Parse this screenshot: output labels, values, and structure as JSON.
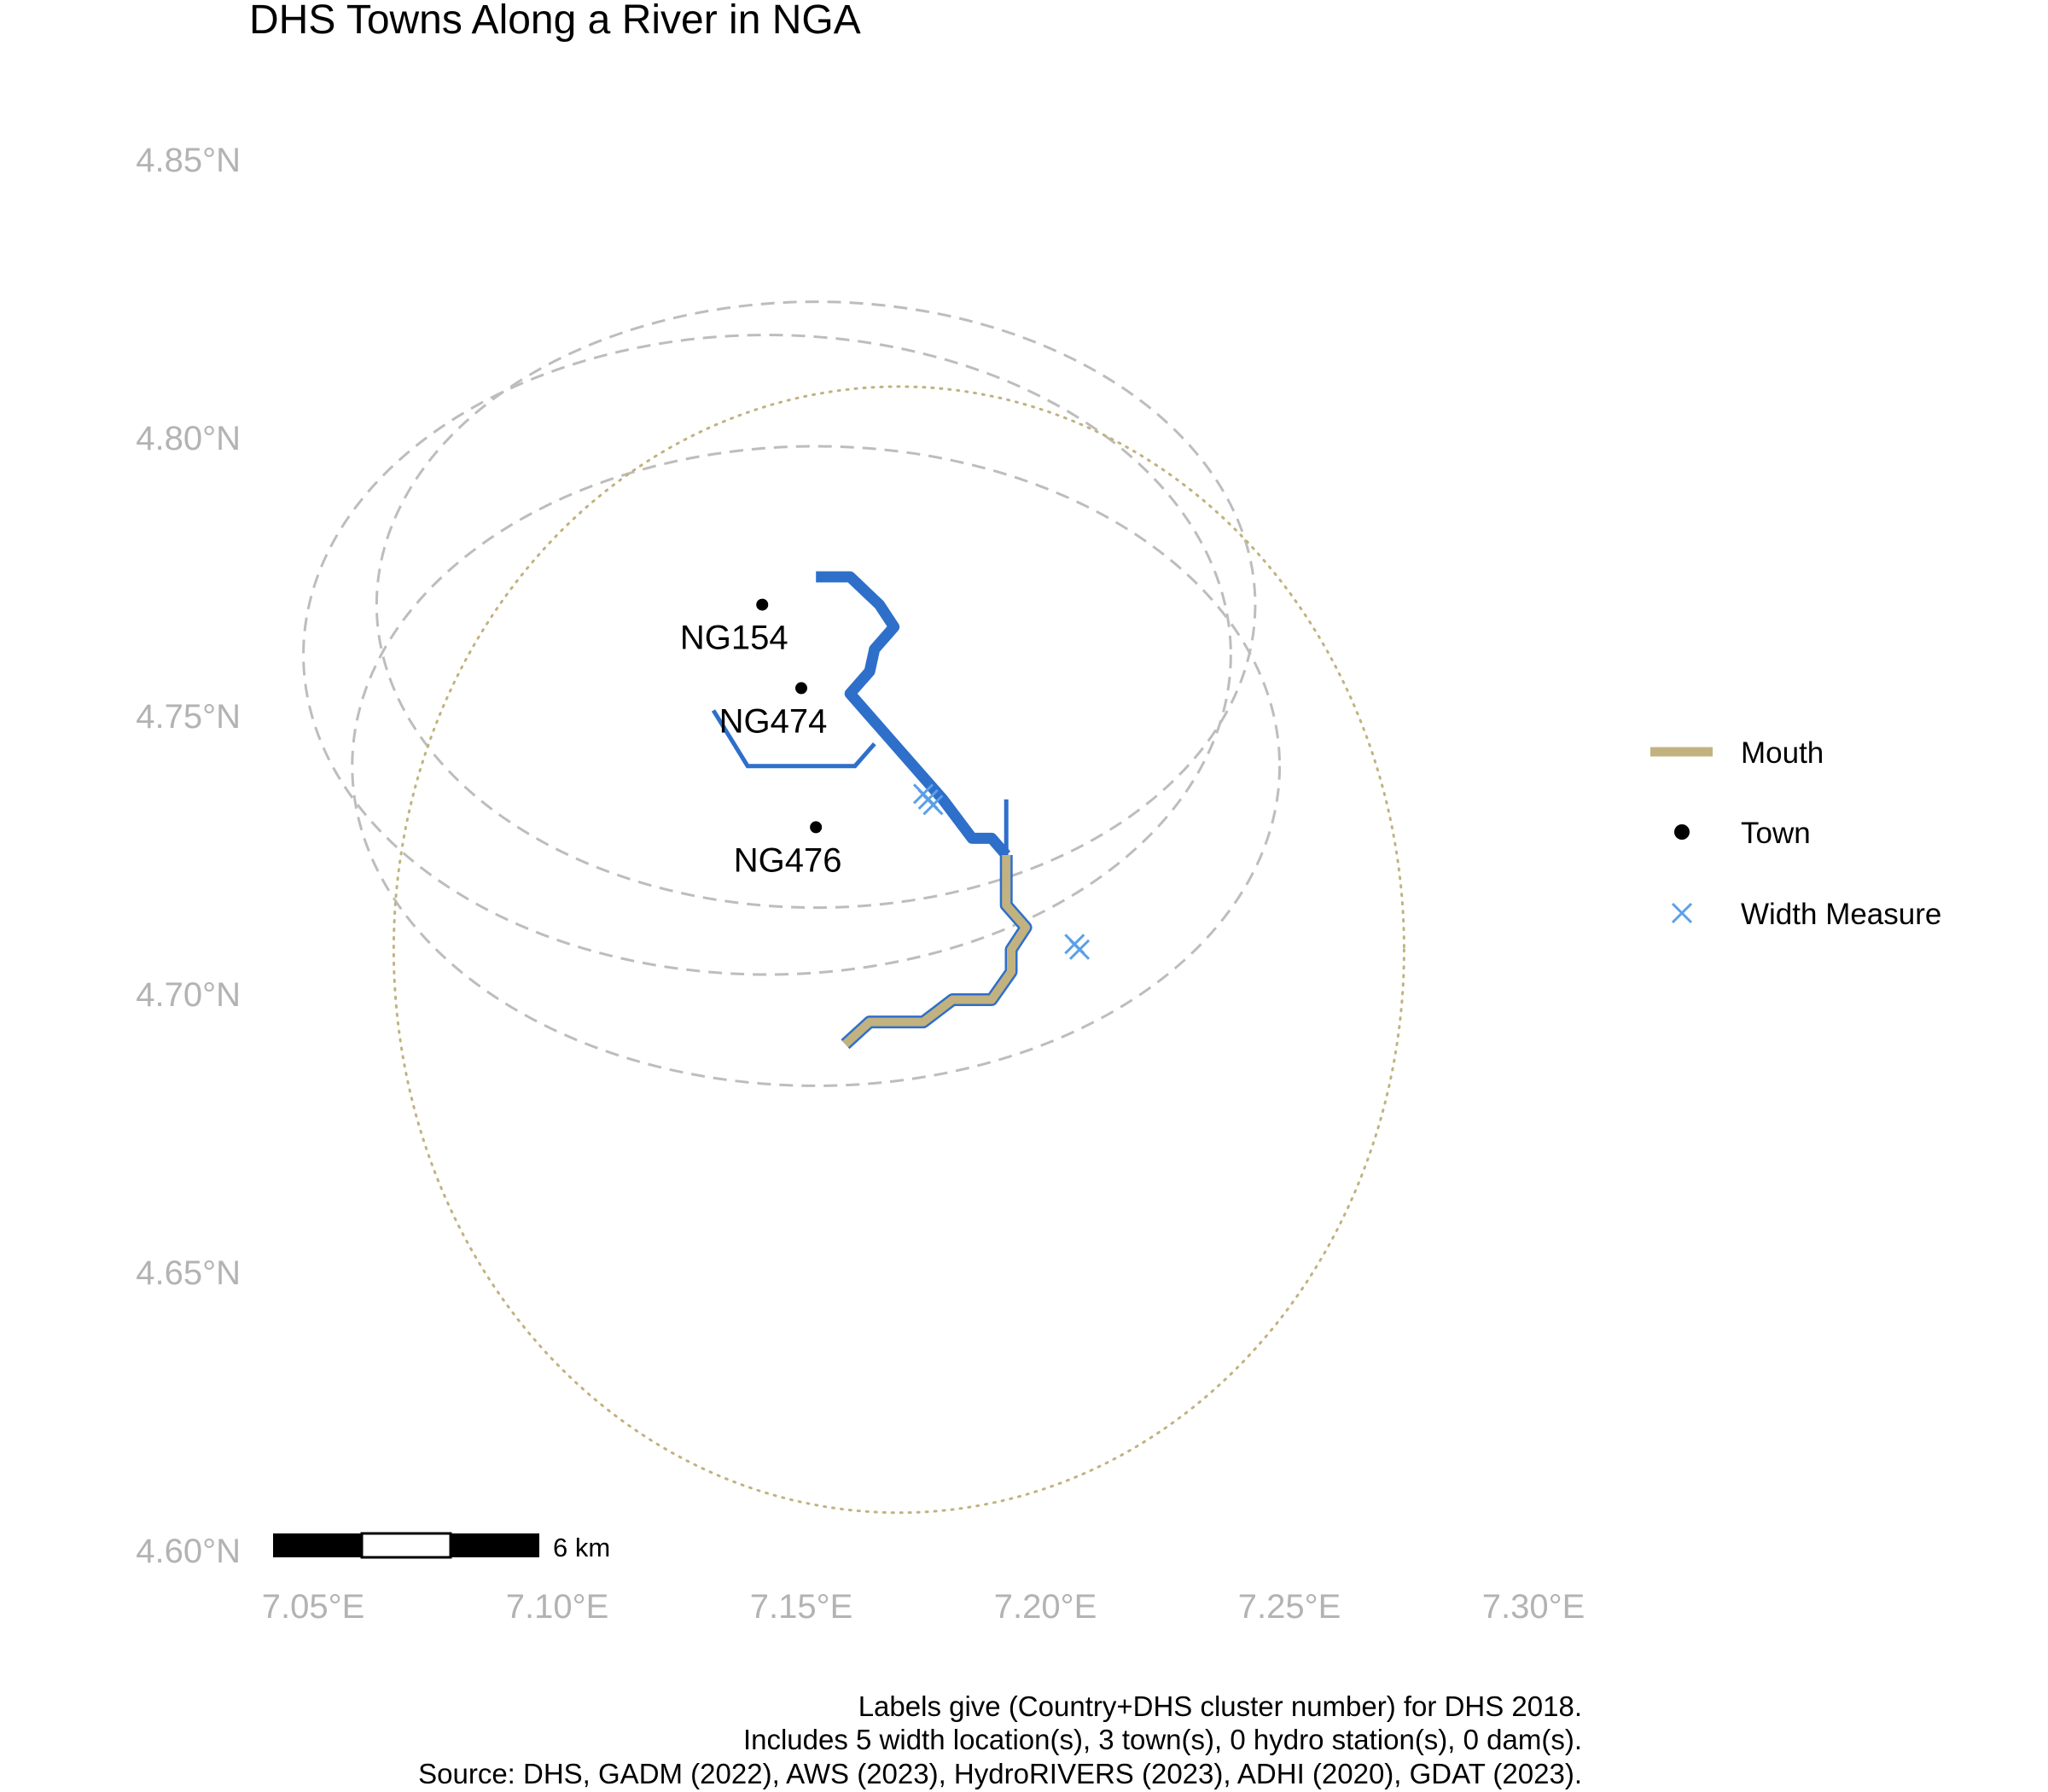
{
  "title": "DHS Towns Along a River in NGA",
  "chart_data": {
    "type": "map",
    "x_axis": {
      "ticks": [
        "7.05°E",
        "7.10°E",
        "7.15°E",
        "7.20°E",
        "7.25°E",
        "7.30°E"
      ],
      "tick_values": [
        7.05,
        7.1,
        7.15,
        7.2,
        7.25,
        7.3
      ]
    },
    "y_axis": {
      "ticks": [
        "4.85°N",
        "4.80°N",
        "4.75°N",
        "4.70°N",
        "4.65°N",
        "4.60°N"
      ],
      "tick_values": [
        4.85,
        4.8,
        4.75,
        4.7,
        4.65,
        4.6
      ]
    },
    "towns": [
      {
        "label": "NG154",
        "lon": 7.142,
        "lat": 4.77
      },
      {
        "label": "NG474",
        "lon": 7.15,
        "lat": 4.755
      },
      {
        "label": "NG476",
        "lon": 7.153,
        "lat": 4.73
      }
    ],
    "width_measures": [
      {
        "lon": 7.176,
        "lat": 4.735
      },
      {
        "lon": 7.177,
        "lat": 4.734
      },
      {
        "lon": 7.175,
        "lat": 4.736
      },
      {
        "lon": 7.206,
        "lat": 4.709
      },
      {
        "lon": 7.207,
        "lat": 4.708
      }
    ],
    "river_main": [
      [
        7.153,
        4.775
      ],
      [
        7.16,
        4.775
      ],
      [
        7.166,
        4.77
      ],
      [
        7.169,
        4.766
      ],
      [
        7.165,
        4.762
      ],
      [
        7.164,
        4.758
      ],
      [
        7.16,
        4.754
      ],
      [
        7.166,
        4.748
      ],
      [
        7.17,
        4.744
      ],
      [
        7.175,
        4.739
      ],
      [
        7.179,
        4.735
      ],
      [
        7.185,
        4.728
      ],
      [
        7.189,
        4.728
      ],
      [
        7.192,
        4.725
      ]
    ],
    "river_branch": [
      [
        7.132,
        4.751
      ],
      [
        7.139,
        4.741
      ],
      [
        7.161,
        4.741
      ],
      [
        7.165,
        4.745
      ]
    ],
    "river_tributary": [
      [
        7.192,
        4.725
      ],
      [
        7.192,
        4.735
      ]
    ],
    "river_mouth": [
      [
        7.192,
        4.725
      ],
      [
        7.192,
        4.716
      ],
      [
        7.196,
        4.712
      ],
      [
        7.193,
        4.708
      ],
      [
        7.193,
        4.704
      ],
      [
        7.189,
        4.699
      ],
      [
        7.181,
        4.699
      ],
      [
        7.178,
        4.697
      ],
      [
        7.175,
        4.695
      ],
      [
        7.164,
        4.695
      ],
      [
        7.159,
        4.691
      ]
    ],
    "buffers_dashed": [
      {
        "lon": 7.143,
        "lat": 4.761,
        "r_deg": 0.095
      },
      {
        "lon": 7.153,
        "lat": 4.77,
        "r_deg": 0.09
      },
      {
        "lon": 7.153,
        "lat": 4.741,
        "r_deg": 0.095
      }
    ],
    "buffer_dotted": {
      "lon": 7.17,
      "lat": 4.708,
      "r_deg": 0.115
    },
    "scale_bar": {
      "label": "6 km"
    },
    "colors": {
      "river": "#2e6fca",
      "mouth": "#c2b280",
      "width_measure": "#5aa0e8",
      "buffer": "#bdbdbd",
      "town": "#000000"
    }
  },
  "legend": {
    "items": [
      {
        "label": "Mouth",
        "kind": "line",
        "color": "#c2b280"
      },
      {
        "label": "Town",
        "kind": "point",
        "color": "#000000"
      },
      {
        "label": "Width Measure",
        "kind": "cross",
        "color": "#5aa0e8"
      }
    ]
  },
  "caption": {
    "line1": "Labels give (Country+DHS cluster number) for DHS 2018.",
    "line2": "Includes 5 width location(s), 3 town(s), 0 hydro station(s), 0 dam(s).",
    "line3": "Source: DHS, GADM (2022), AWS (2023), HydroRIVERS (2023), ADHI (2020), GDAT (2023)."
  }
}
